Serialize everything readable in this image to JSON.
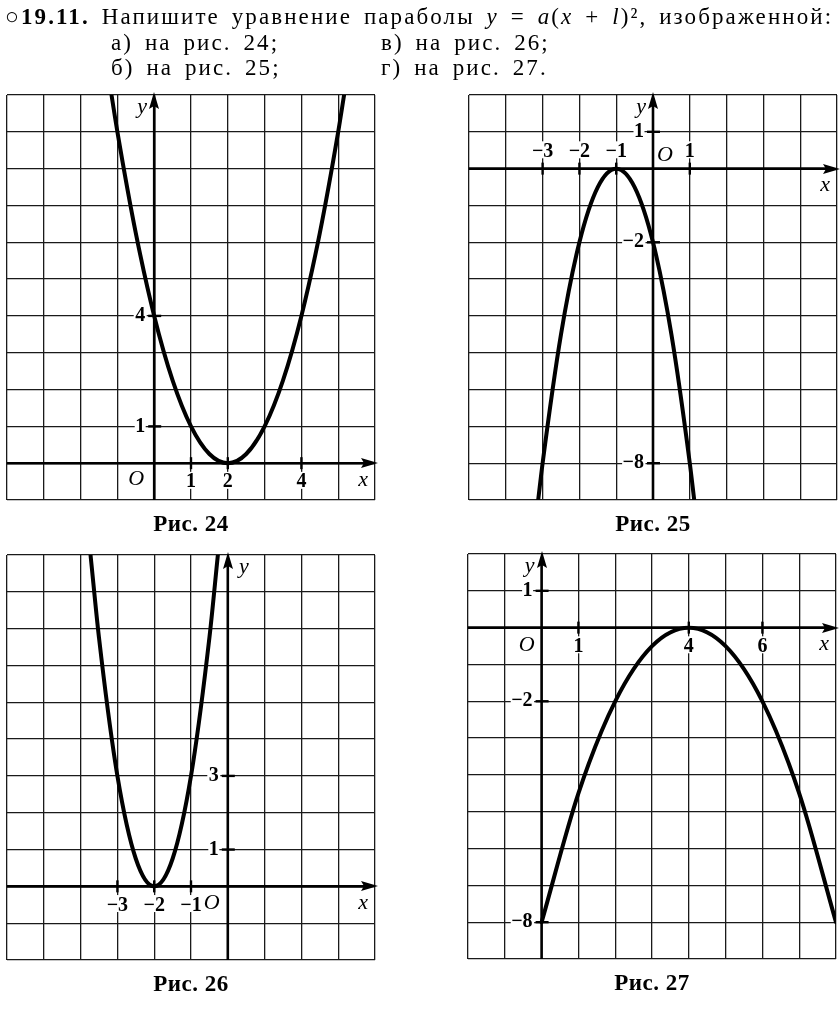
{
  "chart_data": [
    {
      "type": "other",
      "title": "○19.11. Напишите уравнение параболы y = a(x + l)², изображенной:",
      "annotations": [
        "а) на рис. 24;",
        "б) на рис. 25;",
        "в) на рис. 26;",
        "г) на рис. 27."
      ]
    },
    {
      "type": "line",
      "title": "Рис. 24",
      "xlabel": "x",
      "ylabel": "y",
      "x": [
        -1.16,
        -1,
        -0.5,
        0,
        0.5,
        1,
        1.5,
        2,
        2.5,
        3,
        3.5,
        4,
        4.5,
        5,
        5.16
      ],
      "values": [
        10,
        9,
        6.25,
        4,
        2.25,
        1,
        0.25,
        0,
        0.25,
        1,
        2.25,
        4,
        6.25,
        9,
        10
      ],
      "color": "#000000",
      "xlim": [
        -4,
        6
      ],
      "ylim": [
        -1,
        10
      ],
      "xticks": [
        {
          "value": -4,
          "label": null
        },
        {
          "value": -3,
          "label": null
        },
        {
          "value": -2,
          "label": null
        },
        {
          "value": -1,
          "label": null
        },
        {
          "value": 0,
          "label": null
        },
        1,
        2,
        {
          "value": 3,
          "label": null
        },
        4,
        {
          "value": 5,
          "label": null
        },
        {
          "value": 6,
          "label": null
        }
      ],
      "yticks": [
        {
          "value": -1,
          "label": null
        },
        {
          "value": 0,
          "label": null
        },
        1,
        {
          "value": 2,
          "label": null
        },
        {
          "value": 3,
          "label": null
        },
        4,
        {
          "value": 5,
          "label": null
        },
        {
          "value": 6,
          "label": null
        },
        {
          "value": 7,
          "label": null
        },
        {
          "value": 8,
          "label": null
        },
        {
          "value": 9,
          "label": null
        },
        {
          "value": 10,
          "label": null
        }
      ],
      "grid": true,
      "annotations": [
        "O"
      ]
    },
    {
      "type": "line",
      "title": "Рис. 25",
      "xlabel": "x",
      "ylabel": "y",
      "x": [
        -3.12,
        -3,
        -2.5,
        -2,
        -1.5,
        -1,
        -0.5,
        0,
        0.5,
        1,
        1.12
      ],
      "values": [
        -9,
        -8,
        -4.5,
        -2,
        -0.5,
        0,
        -0.5,
        -2,
        -4.5,
        -8,
        -9
      ],
      "color": "#000000",
      "xlim": [
        -5,
        5
      ],
      "ylim": [
        -9,
        2
      ],
      "xticks": [
        {
          "value": -5,
          "label": null
        },
        {
          "value": -4,
          "label": null
        },
        {
          "value": -3,
          "label": "−3"
        },
        {
          "value": -2,
          "label": "−2"
        },
        {
          "value": -1,
          "label": "−1"
        },
        {
          "value": 0,
          "label": null
        },
        1,
        {
          "value": 2,
          "label": null
        },
        {
          "value": 3,
          "label": null
        },
        {
          "value": 4,
          "label": null
        },
        {
          "value": 5,
          "label": null
        }
      ],
      "yticks": [
        {
          "value": -9,
          "label": null
        },
        {
          "value": -8,
          "label": "−8"
        },
        {
          "value": -7,
          "label": null
        },
        {
          "value": -6,
          "label": null
        },
        {
          "value": -5,
          "label": null
        },
        {
          "value": -4,
          "label": null
        },
        {
          "value": -3,
          "label": null
        },
        {
          "value": -2,
          "label": "−2"
        },
        {
          "value": -1,
          "label": null
        },
        {
          "value": 0,
          "label": null
        },
        1,
        {
          "value": 2,
          "label": null
        }
      ],
      "grid": true,
      "annotations": [
        "O"
      ]
    },
    {
      "type": "line",
      "title": "Рис. 26",
      "xlabel": "x",
      "ylabel": "y",
      "x": [
        -3.73,
        -3.5,
        -3,
        -2.5,
        -2,
        -1.5,
        -1,
        -0.5,
        -0.27
      ],
      "values": [
        9,
        6.75,
        3,
        0.75,
        0,
        0.75,
        3,
        6.75,
        9
      ],
      "color": "#000000",
      "xlim": [
        -6,
        4
      ],
      "ylim": [
        -2,
        9
      ],
      "xticks": [
        {
          "value": -6,
          "label": null
        },
        {
          "value": -5,
          "label": null
        },
        {
          "value": -4,
          "label": null
        },
        {
          "value": -3,
          "label": "−3"
        },
        {
          "value": -2,
          "label": "−2"
        },
        {
          "value": -1,
          "label": "−1"
        },
        {
          "value": 0,
          "label": null
        },
        {
          "value": 1,
          "label": null
        },
        {
          "value": 2,
          "label": null
        },
        {
          "value": 3,
          "label": null
        },
        {
          "value": 4,
          "label": null
        }
      ],
      "yticks": [
        {
          "value": -2,
          "label": null
        },
        {
          "value": -1,
          "label": null
        },
        {
          "value": 0,
          "label": null
        },
        1,
        {
          "value": 2,
          "label": null
        },
        3,
        {
          "value": 4,
          "label": null
        },
        {
          "value": 5,
          "label": null
        },
        {
          "value": 6,
          "label": null
        },
        {
          "value": 7,
          "label": null
        },
        {
          "value": 8,
          "label": null
        },
        {
          "value": 9,
          "label": null
        }
      ],
      "grid": true,
      "annotations": [
        "O"
      ]
    },
    {
      "type": "line",
      "title": "Рис. 27",
      "xlabel": "x",
      "ylabel": "y",
      "x": [
        0,
        1,
        2,
        3,
        4,
        5,
        6,
        7,
        8
      ],
      "values": [
        -8,
        -4.5,
        -2,
        -0.5,
        0,
        -0.5,
        -2,
        -4.5,
        -8
      ],
      "color": "#000000",
      "xlim": [
        -2,
        8
      ],
      "ylim": [
        -9,
        2
      ],
      "xticks": [
        {
          "value": -2,
          "label": null
        },
        {
          "value": -1,
          "label": null
        },
        {
          "value": 0,
          "label": null
        },
        1,
        {
          "value": 2,
          "label": null
        },
        {
          "value": 3,
          "label": null
        },
        4,
        {
          "value": 5,
          "label": null
        },
        6,
        {
          "value": 7,
          "label": null
        },
        {
          "value": 8,
          "label": null
        }
      ],
      "yticks": [
        {
          "value": -9,
          "label": null
        },
        {
          "value": -8,
          "label": "−8"
        },
        {
          "value": -7,
          "label": null
        },
        {
          "value": -6,
          "label": null
        },
        {
          "value": -5,
          "label": null
        },
        {
          "value": -4,
          "label": null
        },
        {
          "value": -3,
          "label": null
        },
        {
          "value": -2,
          "label": "−2"
        },
        {
          "value": -1,
          "label": null
        },
        {
          "value": 0,
          "label": null
        },
        1,
        {
          "value": 2,
          "label": null
        }
      ],
      "grid": true,
      "annotations": [
        "O"
      ]
    }
  ]
}
